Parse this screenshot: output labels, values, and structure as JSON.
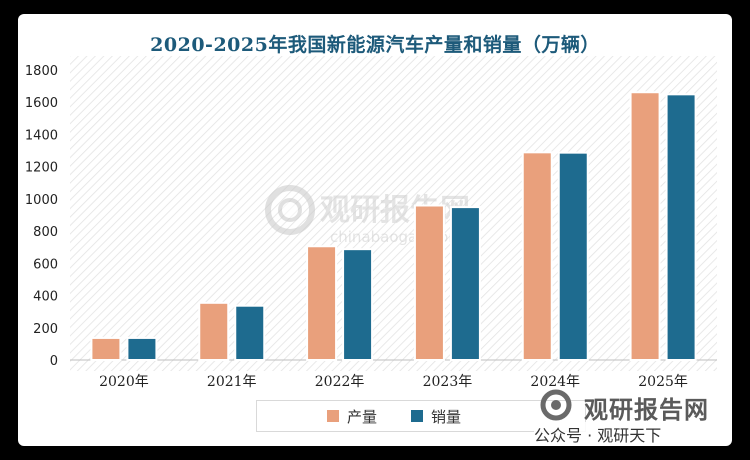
{
  "chart_data": {
    "type": "bar",
    "title": "2020-2025年我国新能源汽车产量和销量（万辆）",
    "categories": [
      "2020年",
      "2021年",
      "2022年",
      "2023年",
      "2024年",
      "2025年"
    ],
    "series": [
      {
        "name": "产量",
        "color": "#e9a07c",
        "values": [
          137,
          355,
          706,
          959,
          1289,
          1662
        ]
      },
      {
        "name": "销量",
        "color": "#1e6b8f",
        "values": [
          137,
          337,
          688,
          949,
          1287,
          1649
        ]
      }
    ],
    "ylim": [
      0,
      1800
    ],
    "yticks": [
      "0",
      "200",
      "400",
      "600",
      "800",
      "1000",
      "1200",
      "1400",
      "1600",
      "1800"
    ],
    "grid": false,
    "legend": "bottom"
  },
  "watermark": {
    "center_brand": "观研报告网",
    "center_url": "chinabaogao.com",
    "corner_brand": "观研报告网",
    "corner_account": "公众号 · 观研天下"
  }
}
